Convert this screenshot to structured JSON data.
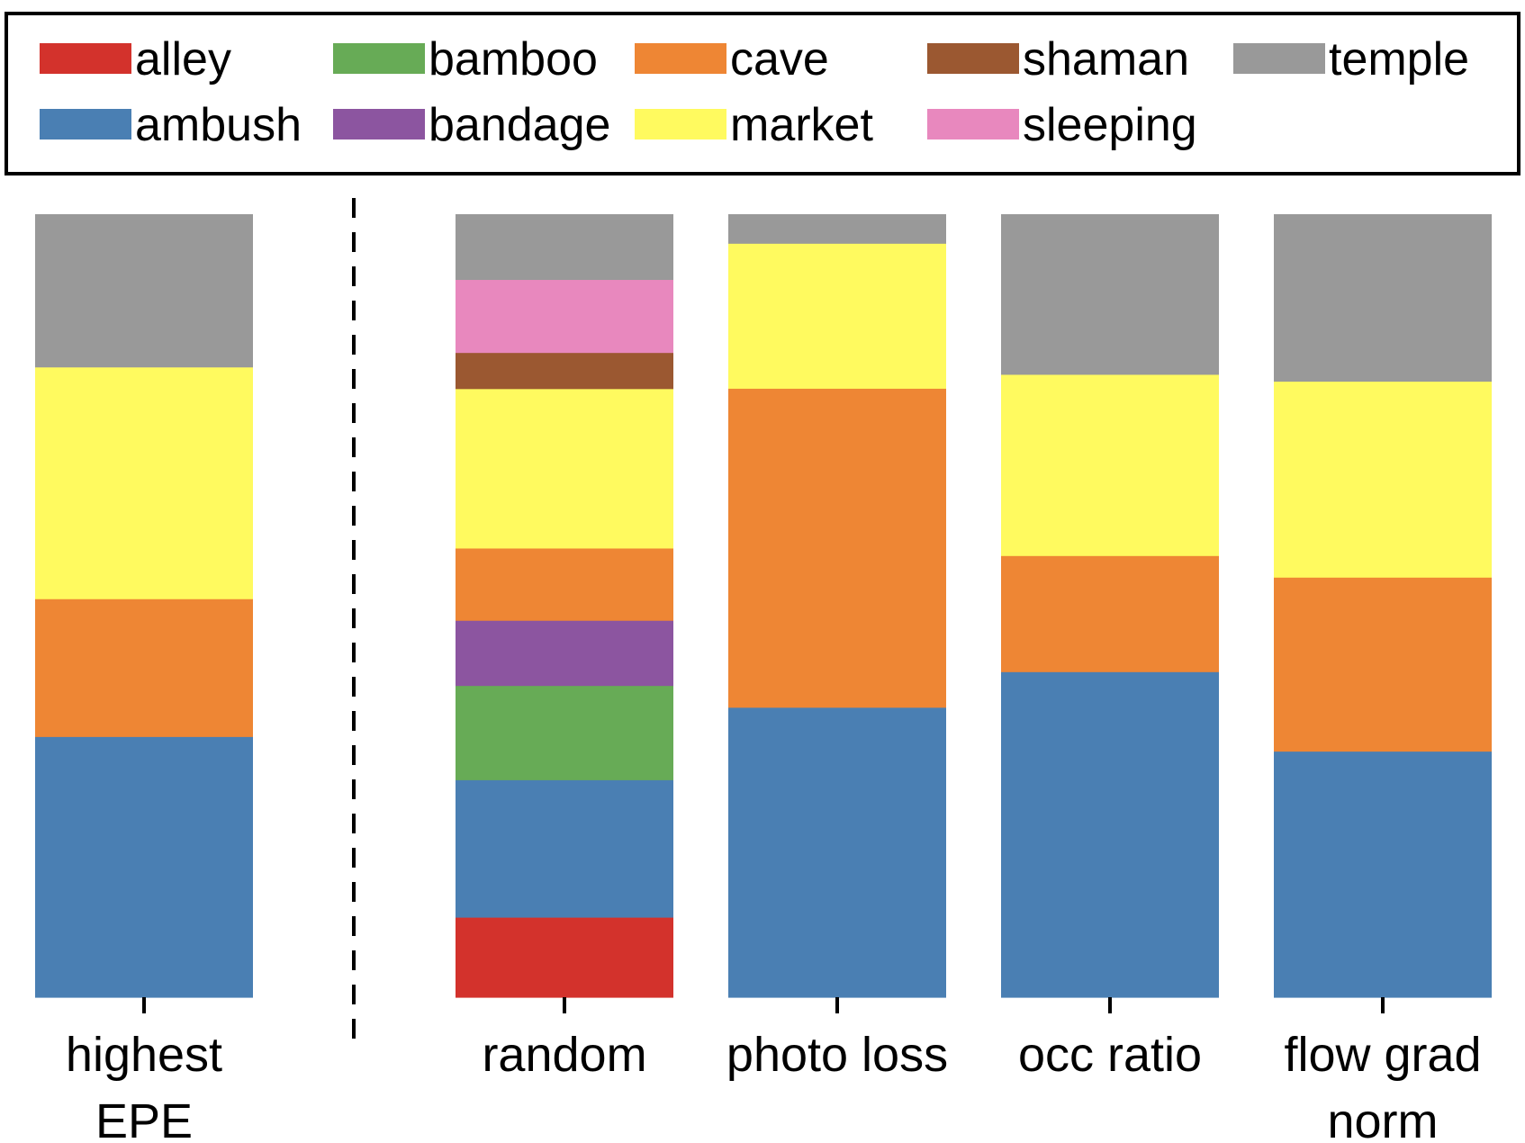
{
  "chart_data": {
    "type": "bar",
    "stacked": true,
    "normalized": true,
    "ylim": [
      0,
      1
    ],
    "grid": false,
    "legend_position": "top",
    "categories": [
      [
        "highest",
        "EPE"
      ],
      [
        "random"
      ],
      [
        "photo loss"
      ],
      [
        "occ ratio"
      ],
      [
        "flow grad",
        "norm"
      ]
    ],
    "category_group_separator_after": 0,
    "series": [
      {
        "name": "alley",
        "color": "#d3322c",
        "values": [
          0.0,
          0.102,
          0.0,
          0.0,
          0.0
        ]
      },
      {
        "name": "ambush",
        "color": "#4a7fb3",
        "values": [
          0.333,
          0.175,
          0.37,
          0.415,
          0.314
        ]
      },
      {
        "name": "bamboo",
        "color": "#67ab56",
        "values": [
          0.0,
          0.12,
          0.0,
          0.0,
          0.0
        ]
      },
      {
        "name": "bandage",
        "color": "#8c55a0",
        "values": [
          0.0,
          0.083,
          0.0,
          0.0,
          0.0
        ]
      },
      {
        "name": "cave",
        "color": "#ee8634",
        "values": [
          0.176,
          0.092,
          0.407,
          0.148,
          0.222
        ]
      },
      {
        "name": "market",
        "color": "#fffa5f",
        "values": [
          0.296,
          0.203,
          0.185,
          0.231,
          0.25
        ]
      },
      {
        "name": "shaman",
        "color": "#9b5831",
        "values": [
          0.0,
          0.046,
          0.0,
          0.0,
          0.0
        ]
      },
      {
        "name": "sleeping",
        "color": "#e888be",
        "values": [
          0.0,
          0.093,
          0.0,
          0.0,
          0.0
        ]
      },
      {
        "name": "temple",
        "color": "#999999",
        "values": [
          0.195,
          0.083,
          0.037,
          0.204,
          0.213
        ]
      }
    ],
    "legend_order": [
      [
        "alley",
        "bamboo",
        "cave",
        "shaman",
        "temple"
      ],
      [
        "ambush",
        "bandage",
        "market",
        "sleeping"
      ]
    ],
    "title": "",
    "xlabel": "",
    "ylabel": ""
  }
}
